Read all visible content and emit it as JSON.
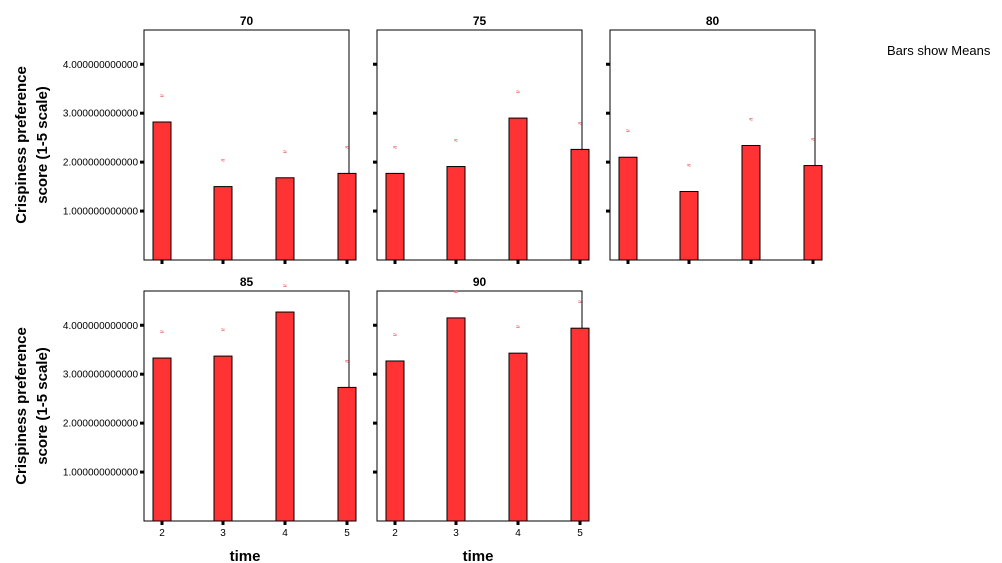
{
  "note": "Bars show Means",
  "chart_data": {
    "type": "bar",
    "xlabel": "time",
    "ylabel_line1": "Crispiness preference",
    "ylabel_line2": "score  (1-5 scale)",
    "categories": [
      "2",
      "3",
      "4",
      "5"
    ],
    "ylim": [
      0,
      4.7
    ],
    "yticks": [
      "1.000000000000",
      "2.000000000000",
      "3.000000000000",
      "4.000000000000"
    ],
    "ytick_values": [
      1,
      2,
      3,
      4
    ],
    "bar_color": "#ff3333",
    "mark_color": "#e8262b",
    "mark_text": "≈",
    "panels": [
      {
        "title": "70",
        "values": [
          2.82,
          1.5,
          1.68,
          1.77
        ]
      },
      {
        "title": "75",
        "values": [
          1.77,
          1.91,
          2.9,
          2.26
        ]
      },
      {
        "title": "80",
        "values": [
          2.1,
          1.4,
          2.34,
          1.93
        ]
      },
      {
        "title": "85",
        "values": [
          3.33,
          3.37,
          4.27,
          2.73
        ]
      },
      {
        "title": "90",
        "values": [
          3.27,
          4.15,
          3.43,
          3.94
        ]
      }
    ]
  }
}
